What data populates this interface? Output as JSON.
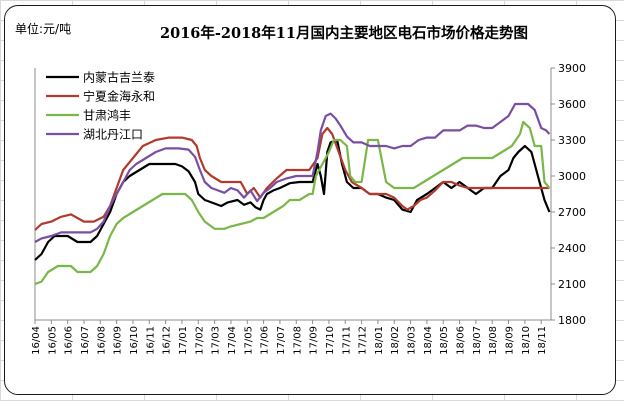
{
  "chart_data": {
    "type": "line",
    "title": "2016年-2018年11月国内主要地区电石市场价格走势图",
    "unit_label": "单位:元/吨",
    "xlabel": "",
    "ylabel": "",
    "ylim": [
      1800,
      3900
    ],
    "yticks": [
      1800,
      2100,
      2400,
      2700,
      3000,
      3300,
      3600,
      3900
    ],
    "grid": false,
    "legend_position": "top-left",
    "categories": [
      "16/04",
      "16/05",
      "16/06",
      "16/07",
      "16/08",
      "16/09",
      "16/10",
      "16/11",
      "16/12",
      "17/01",
      "17/02",
      "17/03",
      "17/04",
      "17/05",
      "17/06",
      "17/07",
      "17/08",
      "17/09",
      "17/10",
      "17/11",
      "17/12",
      "18/01",
      "18/02",
      "18/03",
      "18/04",
      "18/05",
      "18/06",
      "18/07",
      "18/08",
      "18/09",
      "18/10",
      "18/11"
    ],
    "x_range": [
      0,
      31.6
    ],
    "series": [
      {
        "name": "内蒙古吉兰泰",
        "color": "#000000",
        "points": [
          [
            0,
            2300
          ],
          [
            0.4,
            2350
          ],
          [
            0.8,
            2450
          ],
          [
            1.2,
            2500
          ],
          [
            2,
            2500
          ],
          [
            2.6,
            2450
          ],
          [
            3.4,
            2450
          ],
          [
            3.8,
            2500
          ],
          [
            4.2,
            2600
          ],
          [
            4.6,
            2700
          ],
          [
            5,
            2850
          ],
          [
            5.4,
            2950
          ],
          [
            5.8,
            3000
          ],
          [
            6.4,
            3050
          ],
          [
            7,
            3100
          ],
          [
            8,
            3100
          ],
          [
            8.6,
            3100
          ],
          [
            9,
            3080
          ],
          [
            9.4,
            3040
          ],
          [
            9.8,
            2950
          ],
          [
            10,
            2850
          ],
          [
            10.4,
            2800
          ],
          [
            10.8,
            2780
          ],
          [
            11.4,
            2750
          ],
          [
            11.8,
            2780
          ],
          [
            12.4,
            2800
          ],
          [
            12.8,
            2760
          ],
          [
            13.2,
            2780
          ],
          [
            13.5,
            2740
          ],
          [
            13.8,
            2720
          ],
          [
            14,
            2800
          ],
          [
            14.2,
            2850
          ],
          [
            14.6,
            2880
          ],
          [
            15,
            2900
          ],
          [
            15.6,
            2940
          ],
          [
            16.2,
            2950
          ],
          [
            16.8,
            2950
          ],
          [
            17,
            2950
          ],
          [
            17.3,
            3100
          ],
          [
            17.5,
            3000
          ],
          [
            17.7,
            2850
          ],
          [
            17.9,
            3200
          ],
          [
            18.1,
            3280
          ],
          [
            18.5,
            3300
          ],
          [
            18.8,
            3100
          ],
          [
            19.1,
            2950
          ],
          [
            19.5,
            2900
          ],
          [
            20,
            2900
          ],
          [
            20.5,
            2850
          ],
          [
            21,
            2850
          ],
          [
            21.5,
            2820
          ],
          [
            22,
            2800
          ],
          [
            22.5,
            2720
          ],
          [
            23,
            2700
          ],
          [
            23.4,
            2800
          ],
          [
            24,
            2850
          ],
          [
            24.5,
            2900
          ],
          [
            25,
            2950
          ],
          [
            25.5,
            2900
          ],
          [
            26,
            2950
          ],
          [
            26.5,
            2900
          ],
          [
            27,
            2850
          ],
          [
            27.5,
            2900
          ],
          [
            28,
            2900
          ],
          [
            28.5,
            3000
          ],
          [
            29,
            3050
          ],
          [
            29.3,
            3150
          ],
          [
            29.6,
            3200
          ],
          [
            30,
            3250
          ],
          [
            30.4,
            3200
          ],
          [
            30.8,
            3000
          ],
          [
            31.2,
            2800
          ],
          [
            31.5,
            2700
          ]
        ]
      },
      {
        "name": "宁夏金海永和",
        "color": "#b03a2e",
        "points": [
          [
            0,
            2550
          ],
          [
            0.4,
            2600
          ],
          [
            1,
            2620
          ],
          [
            1.6,
            2660
          ],
          [
            2.2,
            2680
          ],
          [
            3,
            2620
          ],
          [
            3.6,
            2620
          ],
          [
            4.2,
            2660
          ],
          [
            4.6,
            2750
          ],
          [
            5,
            2900
          ],
          [
            5.4,
            3050
          ],
          [
            6,
            3150
          ],
          [
            6.6,
            3250
          ],
          [
            7.4,
            3300
          ],
          [
            8.2,
            3320
          ],
          [
            9,
            3320
          ],
          [
            9.6,
            3300
          ],
          [
            9.9,
            3250
          ],
          [
            10.1,
            3150
          ],
          [
            10.4,
            3050
          ],
          [
            10.8,
            3000
          ],
          [
            11.4,
            2950
          ],
          [
            12,
            2950
          ],
          [
            12.6,
            2950
          ],
          [
            13,
            2850
          ],
          [
            13.4,
            2900
          ],
          [
            13.8,
            2820
          ],
          [
            14.2,
            2900
          ],
          [
            14.8,
            2980
          ],
          [
            15.4,
            3050
          ],
          [
            16,
            3050
          ],
          [
            16.8,
            3050
          ],
          [
            17.3,
            3150
          ],
          [
            17.6,
            3350
          ],
          [
            17.9,
            3400
          ],
          [
            18.2,
            3350
          ],
          [
            18.6,
            3200
          ],
          [
            19,
            3050
          ],
          [
            19.4,
            2950
          ],
          [
            20,
            2900
          ],
          [
            20.5,
            2850
          ],
          [
            21,
            2850
          ],
          [
            21.5,
            2850
          ],
          [
            22,
            2820
          ],
          [
            22.5,
            2750
          ],
          [
            22.8,
            2720
          ],
          [
            23.2,
            2750
          ],
          [
            23.6,
            2800
          ],
          [
            24,
            2820
          ],
          [
            24.5,
            2880
          ],
          [
            25,
            2950
          ],
          [
            25.5,
            2950
          ],
          [
            26,
            2920
          ],
          [
            26.5,
            2900
          ],
          [
            27,
            2900
          ],
          [
            27.5,
            2900
          ],
          [
            28,
            2900
          ],
          [
            28.5,
            2900
          ],
          [
            29,
            2900
          ],
          [
            29.5,
            2900
          ],
          [
            30,
            2900
          ],
          [
            30.5,
            2900
          ],
          [
            31,
            2900
          ],
          [
            31.5,
            2900
          ]
        ]
      },
      {
        "name": "甘肃鸿丰",
        "color": "#7ab648",
        "points": [
          [
            0,
            2100
          ],
          [
            0.4,
            2120
          ],
          [
            0.8,
            2200
          ],
          [
            1.4,
            2250
          ],
          [
            2.2,
            2250
          ],
          [
            2.6,
            2200
          ],
          [
            3.4,
            2200
          ],
          [
            3.8,
            2250
          ],
          [
            4.2,
            2350
          ],
          [
            4.6,
            2500
          ],
          [
            5,
            2600
          ],
          [
            5.4,
            2650
          ],
          [
            6,
            2700
          ],
          [
            6.6,
            2750
          ],
          [
            7.2,
            2800
          ],
          [
            7.8,
            2850
          ],
          [
            8.6,
            2850
          ],
          [
            9.2,
            2850
          ],
          [
            9.6,
            2800
          ],
          [
            10,
            2700
          ],
          [
            10.4,
            2620
          ],
          [
            11,
            2560
          ],
          [
            11.6,
            2560
          ],
          [
            12,
            2580
          ],
          [
            12.6,
            2600
          ],
          [
            13.2,
            2620
          ],
          [
            13.6,
            2650
          ],
          [
            14,
            2650
          ],
          [
            14.6,
            2700
          ],
          [
            15.2,
            2750
          ],
          [
            15.6,
            2800
          ],
          [
            16.2,
            2800
          ],
          [
            16.8,
            2850
          ],
          [
            17,
            2850
          ],
          [
            17.2,
            3000
          ],
          [
            17.6,
            3100
          ],
          [
            18,
            3200
          ],
          [
            18.3,
            3300
          ],
          [
            18.7,
            3300
          ],
          [
            19.1,
            3250
          ],
          [
            19.3,
            3000
          ],
          [
            19.6,
            2950
          ],
          [
            20,
            2950
          ],
          [
            20.4,
            3300
          ],
          [
            21,
            3300
          ],
          [
            21.5,
            2950
          ],
          [
            22,
            2900
          ],
          [
            22.6,
            2900
          ],
          [
            23.2,
            2900
          ],
          [
            23.8,
            2950
          ],
          [
            24.4,
            3000
          ],
          [
            25,
            3050
          ],
          [
            25.6,
            3100
          ],
          [
            26.2,
            3150
          ],
          [
            26.8,
            3150
          ],
          [
            27.4,
            3150
          ],
          [
            28,
            3150
          ],
          [
            28.6,
            3200
          ],
          [
            29.2,
            3250
          ],
          [
            29.7,
            3350
          ],
          [
            29.9,
            3450
          ],
          [
            30.3,
            3400
          ],
          [
            30.6,
            3250
          ],
          [
            31,
            3250
          ],
          [
            31.2,
            2950
          ],
          [
            31.5,
            2900
          ]
        ]
      },
      {
        "name": "湖北丹江口",
        "color": "#7a4ea3",
        "points": [
          [
            0,
            2450
          ],
          [
            0.4,
            2480
          ],
          [
            1,
            2500
          ],
          [
            1.6,
            2530
          ],
          [
            2.2,
            2530
          ],
          [
            2.8,
            2530
          ],
          [
            3.4,
            2530
          ],
          [
            3.8,
            2560
          ],
          [
            4.2,
            2620
          ],
          [
            4.6,
            2750
          ],
          [
            5,
            2850
          ],
          [
            5.4,
            2950
          ],
          [
            5.8,
            3050
          ],
          [
            6.2,
            3100
          ],
          [
            6.8,
            3150
          ],
          [
            7.4,
            3200
          ],
          [
            8,
            3230
          ],
          [
            8.8,
            3230
          ],
          [
            9.4,
            3220
          ],
          [
            9.8,
            3160
          ],
          [
            10.1,
            3050
          ],
          [
            10.4,
            2950
          ],
          [
            10.8,
            2900
          ],
          [
            11.2,
            2880
          ],
          [
            11.6,
            2860
          ],
          [
            12,
            2900
          ],
          [
            12.4,
            2880
          ],
          [
            12.8,
            2820
          ],
          [
            13.2,
            2880
          ],
          [
            13.6,
            2790
          ],
          [
            14,
            2860
          ],
          [
            14.4,
            2900
          ],
          [
            14.8,
            2950
          ],
          [
            15.4,
            2980
          ],
          [
            16,
            3000
          ],
          [
            16.6,
            3000
          ],
          [
            17,
            3000
          ],
          [
            17.3,
            3200
          ],
          [
            17.5,
            3380
          ],
          [
            17.8,
            3500
          ],
          [
            18.1,
            3520
          ],
          [
            18.4,
            3480
          ],
          [
            18.7,
            3420
          ],
          [
            19.1,
            3330
          ],
          [
            19.5,
            3280
          ],
          [
            20,
            3280
          ],
          [
            20.5,
            3250
          ],
          [
            21,
            3250
          ],
          [
            21.5,
            3250
          ],
          [
            22,
            3230
          ],
          [
            22.5,
            3250
          ],
          [
            23,
            3250
          ],
          [
            23.5,
            3300
          ],
          [
            24,
            3320
          ],
          [
            24.5,
            3320
          ],
          [
            25,
            3380
          ],
          [
            25.5,
            3380
          ],
          [
            26,
            3380
          ],
          [
            26.5,
            3420
          ],
          [
            27,
            3420
          ],
          [
            27.5,
            3400
          ],
          [
            28,
            3400
          ],
          [
            28.5,
            3450
          ],
          [
            29,
            3500
          ],
          [
            29.4,
            3600
          ],
          [
            29.8,
            3600
          ],
          [
            30.2,
            3600
          ],
          [
            30.6,
            3550
          ],
          [
            31,
            3400
          ],
          [
            31.3,
            3380
          ],
          [
            31.5,
            3350
          ]
        ]
      }
    ]
  }
}
